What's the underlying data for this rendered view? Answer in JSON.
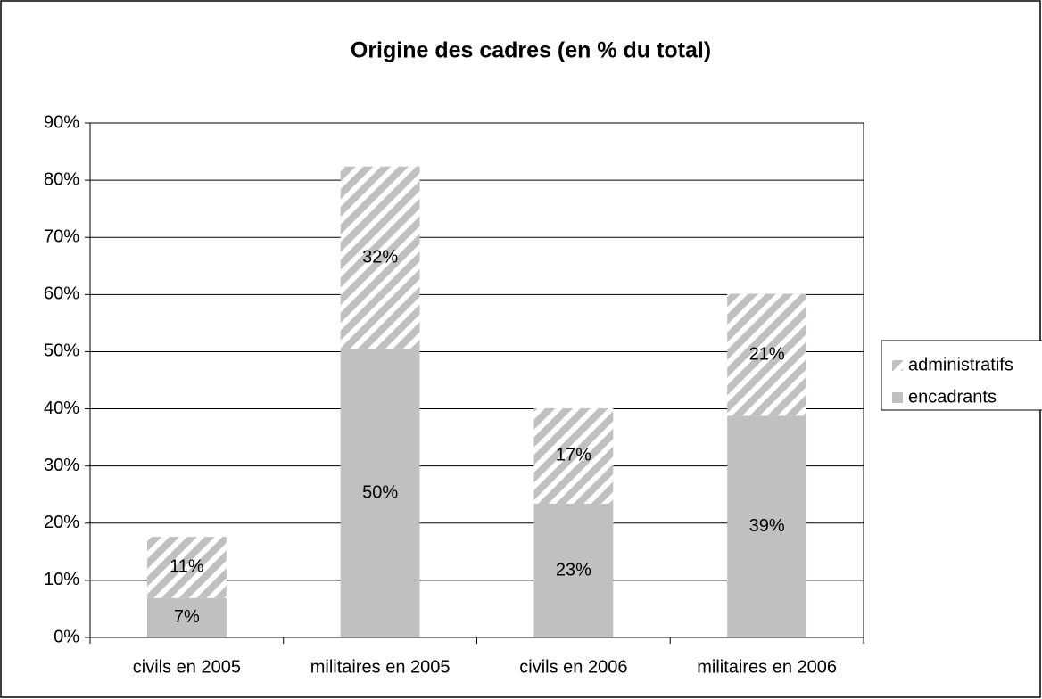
{
  "chart_data": {
    "type": "stacked_bar",
    "title": "Origine des cadres (en % du total)",
    "categories": [
      "civils en 2005",
      "militaires en 2005",
      "civils en 2006",
      "militaires en 2006"
    ],
    "series": [
      {
        "name": "encadrants",
        "color": "#c0c0c0",
        "values": [
          6.9,
          50.4,
          23.4,
          38.8
        ],
        "value_labels": [
          "7%",
          "50%",
          "23%",
          "39%"
        ]
      },
      {
        "name": "administratifs",
        "color": "#c0c0c0",
        "hatch": true,
        "values": [
          10.7,
          32.0,
          16.7,
          21.3
        ],
        "value_labels": [
          "11%",
          "32%",
          "17%",
          "21%"
        ]
      }
    ],
    "ylim": [
      0,
      90
    ],
    "yticks": [
      {
        "value": 0,
        "label": "0%"
      },
      {
        "value": 10,
        "label": "10%"
      },
      {
        "value": 20,
        "label": "20%"
      },
      {
        "value": 30,
        "label": "30%"
      },
      {
        "value": 40,
        "label": "40%"
      },
      {
        "value": 50,
        "label": "50%"
      },
      {
        "value": 60,
        "label": "60%"
      },
      {
        "value": 70,
        "label": "70%"
      },
      {
        "value": 80,
        "label": "80%"
      },
      {
        "value": 90,
        "label": "90%"
      }
    ],
    "grid": true,
    "legend": "right"
  }
}
